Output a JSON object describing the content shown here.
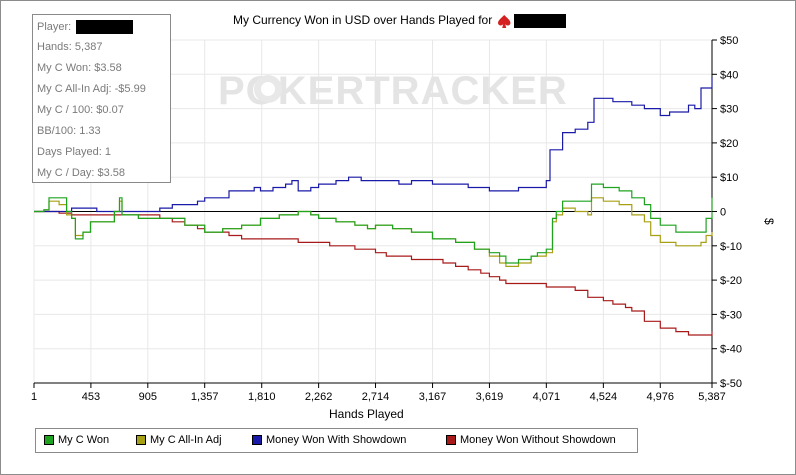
{
  "title_prefix": "My Currency Won in USD over Hands Played for",
  "watermark": "POKERTRACKER",
  "stats": {
    "player_label": "Player:",
    "lines": [
      "Hands: 5,387",
      "My C Won: $3.58",
      "My C All-In Adj: -$5.99",
      "My C / 100: $0.07",
      "BB/100: 1.33",
      "Days Played: 1",
      "My C / Day: $3.58"
    ]
  },
  "colors": {
    "won": "#1fa31f",
    "allin": "#a8a014",
    "showdown": "#1a1aa8",
    "noshowdown": "#a81a1a",
    "grid": "#e8e8e8",
    "suit": "#d42020"
  },
  "chart_data": {
    "type": "line",
    "title": "My Currency Won in USD over Hands Played for",
    "xlabel": "Hands Played",
    "ylabel": "$",
    "xlim": [
      1,
      5387
    ],
    "ylim": [
      -50,
      50
    ],
    "x_ticks": [
      1,
      453,
      905,
      1357,
      1810,
      2262,
      2714,
      3167,
      3619,
      4071,
      4524,
      4976,
      5387
    ],
    "x_tick_labels": [
      "1",
      "453",
      "905",
      "1,357",
      "1,810",
      "2,262",
      "2,714",
      "3,167",
      "3,619",
      "4,071",
      "4,524",
      "4,976",
      "5,387"
    ],
    "y_ticks": [
      50,
      40,
      30,
      20,
      10,
      0,
      -10,
      -20,
      -30,
      -40,
      -50
    ],
    "y_tick_labels": [
      "$50",
      "$40",
      "$30",
      "$20",
      "$10",
      "0",
      "$-10",
      "$-20",
      "$-30",
      "$-40",
      "$-50"
    ],
    "grid": true,
    "legend_position": "bottom",
    "series": [
      {
        "name": "My C Won",
        "x": [
          1,
          80,
          120,
          200,
          260,
          300,
          330,
          390,
          450,
          560,
          640,
          680,
          700,
          760,
          830,
          905,
          1000,
          1200,
          1357,
          1500,
          1650,
          1800,
          1950,
          2000,
          2100,
          2200,
          2262,
          2400,
          2550,
          2650,
          2714,
          2850,
          3000,
          3167,
          3350,
          3500,
          3619,
          3700,
          3750,
          3850,
          3950,
          4000,
          4071,
          4120,
          4150,
          4200,
          4300,
          4400,
          4430,
          4524,
          4650,
          4750,
          4850,
          4900,
          4976,
          5100,
          5200,
          5300,
          5340,
          5387
        ],
        "y": [
          0,
          0.5,
          4,
          4,
          0,
          -2,
          -8,
          -6,
          -3,
          -3,
          0,
          4,
          -1,
          -1,
          -2,
          -2,
          -2,
          -4,
          -6,
          -5,
          -4,
          -2,
          -1,
          -1,
          0,
          -1,
          -2,
          -3,
          -4,
          -5,
          -4,
          -5,
          -6,
          -8,
          -9,
          -11,
          -12,
          -13,
          -15,
          -14,
          -13,
          -12,
          -11,
          -2,
          0,
          3,
          3,
          3,
          8,
          7,
          6,
          4,
          2,
          -2,
          -4,
          -6,
          -6,
          -6,
          -2,
          4
        ]
      },
      {
        "name": "My C All-In Adj",
        "x": [
          1,
          80,
          120,
          200,
          260,
          300,
          330,
          390,
          450,
          560,
          640,
          680,
          700,
          760,
          830,
          905,
          1000,
          1200,
          1357,
          1500,
          1650,
          1800,
          1950,
          2000,
          2100,
          2200,
          2262,
          2400,
          2550,
          2650,
          2714,
          2850,
          3000,
          3167,
          3350,
          3500,
          3619,
          3700,
          3750,
          3850,
          3950,
          4000,
          4071,
          4120,
          4150,
          4200,
          4300,
          4400,
          4430,
          4524,
          4650,
          4750,
          4850,
          4900,
          4976,
          5100,
          5200,
          5300,
          5340,
          5387
        ],
        "y": [
          0,
          0.5,
          3,
          2,
          -1,
          -2,
          -7,
          -6,
          -3,
          -3,
          0,
          3,
          -1,
          -1,
          -2,
          -2,
          -2,
          -4,
          -6,
          -5,
          -4,
          -2,
          -1,
          -1,
          0,
          -1,
          -2,
          -3,
          -4,
          -5,
          -4,
          -5,
          -6,
          -8,
          -9,
          -11,
          -13,
          -15,
          -16,
          -15,
          -13,
          -13,
          -12,
          -3,
          -1,
          1,
          0,
          -1,
          4,
          3,
          2,
          -1,
          -3,
          -7,
          -9,
          -10,
          -10,
          -9,
          -7,
          -6
        ]
      },
      {
        "name": "Money Won With Showdown",
        "x": [
          1,
          100,
          200,
          300,
          400,
          500,
          600,
          700,
          800,
          905,
          1000,
          1100,
          1200,
          1300,
          1357,
          1450,
          1550,
          1650,
          1750,
          1800,
          1900,
          2000,
          2050,
          2100,
          2200,
          2262,
          2400,
          2500,
          2600,
          2714,
          2900,
          3000,
          3167,
          3300,
          3450,
          3619,
          3750,
          3850,
          3950,
          4071,
          4100,
          4200,
          4300,
          4400,
          4450,
          4524,
          4600,
          4750,
          4850,
          4976,
          5050,
          5200,
          5250,
          5300,
          5387
        ],
        "y": [
          0,
          0,
          0,
          1,
          1,
          0,
          0,
          0,
          0,
          0,
          1,
          2,
          2,
          3,
          4,
          4,
          6,
          6,
          7,
          6,
          7,
          8,
          9,
          6,
          7,
          8,
          9,
          10,
          9,
          9,
          8,
          9,
          8,
          8,
          7,
          6,
          6,
          7,
          7,
          9,
          18,
          23,
          24,
          26,
          33,
          33,
          32,
          31,
          30,
          28,
          29,
          31,
          30,
          36,
          39
        ]
      },
      {
        "name": "Money Won Without Showdown",
        "x": [
          1,
          100,
          200,
          300,
          400,
          500,
          600,
          700,
          800,
          905,
          1000,
          1100,
          1200,
          1300,
          1357,
          1450,
          1550,
          1650,
          1750,
          1810,
          1900,
          2000,
          2100,
          2200,
          2262,
          2350,
          2450,
          2550,
          2650,
          2714,
          2800,
          2900,
          3000,
          3167,
          3250,
          3350,
          3450,
          3550,
          3619,
          3700,
          3750,
          3850,
          3950,
          4071,
          4200,
          4300,
          4400,
          4524,
          4600,
          4700,
          4750,
          4850,
          4976,
          5100,
          5200,
          5300,
          5387
        ],
        "y": [
          0,
          0,
          -0.5,
          -1,
          -1,
          -1,
          -1,
          -1,
          -1,
          -1,
          -2,
          -3,
          -4,
          -5,
          -6,
          -6,
          -7,
          -8,
          -8,
          -8,
          -8,
          -8,
          -9,
          -9,
          -9,
          -10,
          -10,
          -11,
          -11,
          -12,
          -13,
          -13,
          -14,
          -14,
          -15,
          -16,
          -17,
          -18,
          -19,
          -20,
          -21,
          -21,
          -21,
          -22,
          -22,
          -23,
          -25,
          -26,
          -27,
          -28,
          -29,
          -32,
          -34,
          -35,
          -36,
          -36,
          -35
        ]
      }
    ]
  }
}
